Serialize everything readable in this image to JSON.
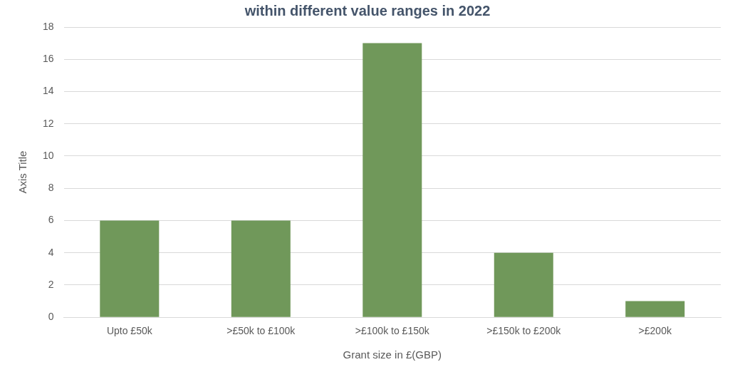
{
  "chart_data": {
    "type": "bar",
    "title": "within different value ranges in 2022",
    "categories": [
      "Upto £50k",
      ">£50k to £100k",
      ">£100k to £150k",
      ">£150k to £200k",
      ">£200k"
    ],
    "values": [
      6,
      6,
      17,
      4,
      1
    ],
    "color": "#70985a",
    "xlabel": "Grant size in £(GBP)",
    "ylabel": "Axis Title",
    "ylim": [
      0,
      18
    ],
    "yticks": [
      0,
      2,
      4,
      6,
      8,
      10,
      12,
      14,
      16,
      18
    ],
    "grid": "y",
    "legend": false
  }
}
